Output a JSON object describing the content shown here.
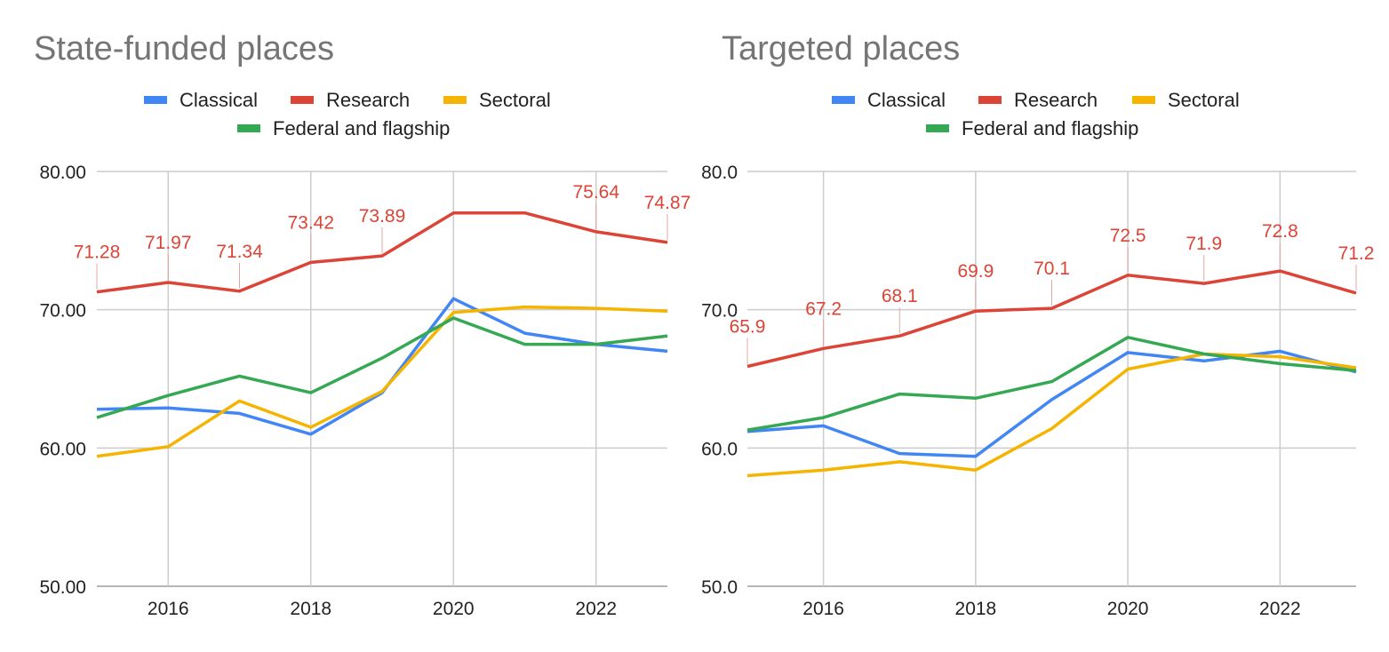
{
  "chart_data": [
    {
      "type": "line",
      "title": "State-funded places",
      "x": [
        2015,
        2016,
        2017,
        2018,
        2019,
        2020,
        2021,
        2022,
        2023
      ],
      "x_ticks": [
        "2016",
        "2018",
        "2020",
        "2022"
      ],
      "x_tick_values": [
        2016,
        2018,
        2020,
        2022
      ],
      "xlim": [
        2015,
        2023
      ],
      "ylim": [
        50,
        80
      ],
      "y_ticks": [
        "50.00",
        "60.00",
        "70.00",
        "80.00"
      ],
      "y_tick_values": [
        50,
        60,
        70,
        80
      ],
      "xlabel": "",
      "ylabel": "",
      "grid": true,
      "legend_position": "top",
      "series": [
        {
          "name": "Classical",
          "color": "#4285f4",
          "values": [
            62.8,
            62.9,
            62.5,
            61.0,
            64.0,
            70.8,
            68.3,
            67.5,
            67.0
          ]
        },
        {
          "name": "Research",
          "color": "#db4437",
          "values": [
            71.28,
            71.97,
            71.34,
            73.42,
            73.89,
            77.0,
            77.0,
            75.64,
            74.87
          ]
        },
        {
          "name": "Sectoral",
          "color": "#f4b400",
          "values": [
            59.4,
            60.1,
            63.4,
            61.5,
            64.1,
            69.8,
            70.2,
            70.1,
            69.9
          ]
        },
        {
          "name": "Federal and flagship",
          "color": "#34a853",
          "values": [
            62.2,
            63.8,
            65.2,
            64.0,
            66.5,
            69.4,
            67.5,
            67.5,
            68.1
          ]
        }
      ],
      "data_labels": {
        "series": "Research",
        "items": [
          {
            "x": 2015,
            "text": "71.28"
          },
          {
            "x": 2016,
            "text": "71.97"
          },
          {
            "x": 2017,
            "text": "71.34"
          },
          {
            "x": 2018,
            "text": "73.42"
          },
          {
            "x": 2019,
            "text": "73.89"
          },
          {
            "x": 2022,
            "text": "75.64"
          },
          {
            "x": 2023,
            "text": "74.87"
          }
        ]
      }
    },
    {
      "type": "line",
      "title": "Targeted places",
      "x": [
        2015,
        2016,
        2017,
        2018,
        2019,
        2020,
        2021,
        2022,
        2023
      ],
      "x_ticks": [
        "2016",
        "2018",
        "2020",
        "2022"
      ],
      "x_tick_values": [
        2016,
        2018,
        2020,
        2022
      ],
      "xlim": [
        2015,
        2023
      ],
      "ylim": [
        50,
        80
      ],
      "y_ticks": [
        "50.0",
        "60.0",
        "70.0",
        "80.0"
      ],
      "y_tick_values": [
        50,
        60,
        70,
        80
      ],
      "xlabel": "",
      "ylabel": "",
      "grid": true,
      "legend_position": "top",
      "series": [
        {
          "name": "Classical",
          "color": "#4285f4",
          "values": [
            61.2,
            61.6,
            59.6,
            59.4,
            63.5,
            66.9,
            66.3,
            67.0,
            65.5
          ]
        },
        {
          "name": "Research",
          "color": "#db4437",
          "values": [
            65.9,
            67.2,
            68.1,
            69.9,
            70.1,
            72.5,
            71.9,
            72.8,
            71.2
          ]
        },
        {
          "name": "Sectoral",
          "color": "#f4b400",
          "values": [
            58.0,
            58.4,
            59.0,
            58.4,
            61.4,
            65.7,
            66.8,
            66.6,
            65.8
          ]
        },
        {
          "name": "Federal and flagship",
          "color": "#34a853",
          "values": [
            61.3,
            62.2,
            63.9,
            63.6,
            64.8,
            68.0,
            66.8,
            66.1,
            65.6
          ]
        }
      ],
      "data_labels": {
        "series": "Research",
        "items": [
          {
            "x": 2015,
            "text": "65.9"
          },
          {
            "x": 2016,
            "text": "67.2"
          },
          {
            "x": 2017,
            "text": "68.1"
          },
          {
            "x": 2018,
            "text": "69.9"
          },
          {
            "x": 2019,
            "text": "70.1"
          },
          {
            "x": 2020,
            "text": "72.5"
          },
          {
            "x": 2021,
            "text": "71.9"
          },
          {
            "x": 2022,
            "text": "72.8"
          },
          {
            "x": 2023,
            "text": "71.2"
          }
        ]
      }
    }
  ]
}
